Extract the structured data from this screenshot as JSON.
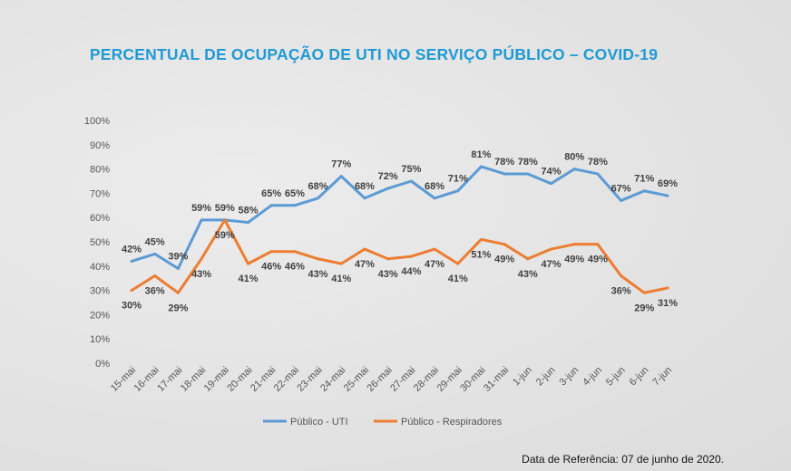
{
  "chart_data": {
    "type": "line",
    "title": "PERCENTUAL DE OCUPAÇÃO DE UTI NO SERVIÇO PÚBLICO – COVID-19",
    "categories": [
      "15-mai",
      "16-mai",
      "17-mai",
      "18-mai",
      "19-mai",
      "20-mai",
      "21-mai",
      "22-mai",
      "23-mai",
      "24-mai",
      "25-mai",
      "26-mai",
      "27-mai",
      "28-mai",
      "29-mai",
      "30-mai",
      "31-mai",
      "1-jun",
      "2-jun",
      "3-jun",
      "4-jun",
      "5-jun",
      "6-jun",
      "7-jun"
    ],
    "yticks": [
      "0%",
      "10%",
      "20%",
      "30%",
      "40%",
      "50%",
      "60%",
      "70%",
      "80%",
      "90%",
      "100%"
    ],
    "ylim": [
      0,
      100
    ],
    "grid": false,
    "legend": "bottom",
    "series": [
      {
        "name": "Público - UTI",
        "color": "#5b9bd5",
        "values": [
          42,
          45,
          39,
          59,
          59,
          58,
          65,
          65,
          68,
          77,
          68,
          72,
          75,
          68,
          71,
          81,
          78,
          78,
          74,
          80,
          78,
          67,
          71,
          69
        ]
      },
      {
        "name": "Público - Respiradores",
        "color": "#ed7d31",
        "values": [
          30,
          36,
          29,
          43,
          59,
          41,
          46,
          46,
          43,
          41,
          47,
          43,
          44,
          47,
          41,
          51,
          49,
          43,
          47,
          49,
          49,
          36,
          29,
          31
        ]
      }
    ]
  },
  "footer": "Data de Referência: 07 de junho de 2020."
}
